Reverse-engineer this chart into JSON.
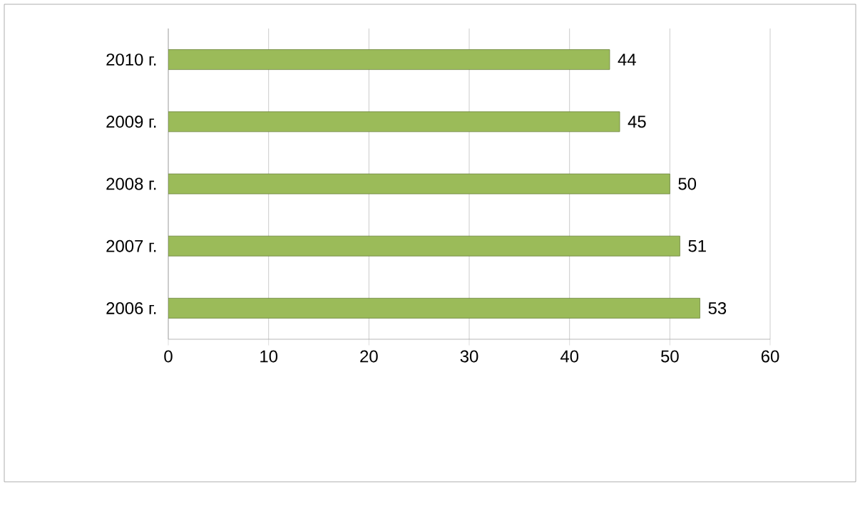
{
  "chart_data": {
    "type": "bar",
    "orientation": "horizontal",
    "categories": [
      "2010 г.",
      "2009 г.",
      "2008 г.",
      "2007 г.",
      "2006 г."
    ],
    "values": [
      44,
      45,
      50,
      51,
      53
    ],
    "color": "#9bbb59",
    "xlim": [
      0,
      60
    ],
    "xticks": [
      0,
      10,
      20,
      30,
      40,
      50,
      60
    ],
    "grid": "x",
    "data_labels": true
  }
}
